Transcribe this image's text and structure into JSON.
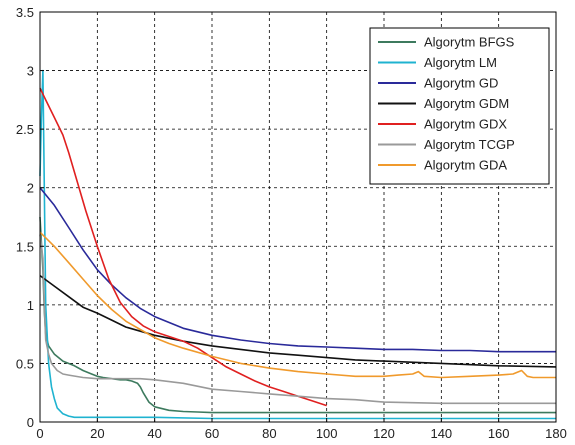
{
  "chart_data": {
    "type": "line",
    "title": "",
    "xlabel": "",
    "ylabel": "",
    "xlim": [
      0,
      180
    ],
    "ylim": [
      0,
      3.5
    ],
    "xticks": [
      "0",
      "20",
      "40",
      "60",
      "80",
      "100",
      "120",
      "140",
      "160",
      "180"
    ],
    "yticks": [
      "0",
      "0.5",
      "1",
      "1.5",
      "2",
      "2.5",
      "3",
      "3.5"
    ],
    "grid": true,
    "legend_position": "top-right",
    "series": [
      {
        "name": "Algorytm BFGS",
        "color": "#3d7a5e",
        "x": [
          0,
          1,
          1.5,
          2,
          3,
          5,
          8,
          12,
          15,
          18,
          20,
          22,
          25,
          28,
          30,
          32,
          34,
          35,
          36,
          38,
          40,
          45,
          50,
          55,
          60,
          80,
          100,
          120,
          140,
          160,
          180
        ],
        "y": [
          1.75,
          1.3,
          0.95,
          0.75,
          0.65,
          0.58,
          0.52,
          0.48,
          0.44,
          0.41,
          0.39,
          0.38,
          0.37,
          0.36,
          0.36,
          0.35,
          0.33,
          0.3,
          0.25,
          0.17,
          0.13,
          0.1,
          0.09,
          0.085,
          0.08,
          0.08,
          0.08,
          0.08,
          0.08,
          0.08,
          0.08
        ]
      },
      {
        "name": "Algorytm LM",
        "color": "#1fb3d0",
        "x": [
          0,
          0.5,
          1,
          1.5,
          2,
          3,
          4,
          5,
          6,
          8,
          10,
          12,
          15,
          20,
          40,
          60,
          80,
          100,
          120,
          140,
          160,
          180
        ],
        "y": [
          2.1,
          2.6,
          3.0,
          2.0,
          1.0,
          0.5,
          0.3,
          0.2,
          0.12,
          0.07,
          0.05,
          0.04,
          0.04,
          0.04,
          0.04,
          0.03,
          0.03,
          0.03,
          0.03,
          0.03,
          0.03,
          0.03
        ]
      },
      {
        "name": "Algorytm GD",
        "color": "#2a2a9a",
        "x": [
          0,
          5,
          10,
          15,
          20,
          25,
          30,
          35,
          40,
          50,
          60,
          70,
          80,
          90,
          100,
          110,
          120,
          130,
          140,
          150,
          160,
          170,
          180
        ],
        "y": [
          2.0,
          1.85,
          1.66,
          1.47,
          1.3,
          1.17,
          1.06,
          0.97,
          0.9,
          0.8,
          0.74,
          0.7,
          0.67,
          0.65,
          0.64,
          0.63,
          0.62,
          0.62,
          0.61,
          0.61,
          0.6,
          0.6,
          0.6
        ]
      },
      {
        "name": "Algorytm GDM",
        "color": "#111111",
        "x": [
          0,
          5,
          10,
          15,
          20,
          25,
          30,
          40,
          50,
          60,
          70,
          80,
          90,
          100,
          110,
          120,
          140,
          160,
          180
        ],
        "y": [
          1.25,
          1.16,
          1.07,
          0.98,
          0.93,
          0.87,
          0.81,
          0.74,
          0.69,
          0.65,
          0.62,
          0.59,
          0.57,
          0.55,
          0.53,
          0.52,
          0.5,
          0.48,
          0.47
        ]
      },
      {
        "name": "Algorytm GDX",
        "color": "#e02020",
        "x": [
          0,
          2,
          5,
          8,
          10,
          13,
          16,
          20,
          24,
          28,
          32,
          36,
          40,
          45,
          50,
          55,
          60,
          65,
          70,
          75,
          80,
          85,
          90,
          95,
          100
        ],
        "y": [
          2.85,
          2.75,
          2.6,
          2.45,
          2.3,
          2.05,
          1.8,
          1.5,
          1.22,
          1.02,
          0.9,
          0.82,
          0.77,
          0.73,
          0.69,
          0.63,
          0.55,
          0.47,
          0.41,
          0.35,
          0.3,
          0.26,
          0.22,
          0.18,
          0.14
        ]
      },
      {
        "name": "Algorytm TCGP",
        "color": "#9a9a9a",
        "x": [
          0,
          1,
          1.5,
          2,
          3,
          4,
          6,
          8,
          10,
          15,
          20,
          25,
          30,
          35,
          40,
          50,
          60,
          70,
          80,
          90,
          100,
          110,
          120,
          140,
          160,
          180
        ],
        "y": [
          1.6,
          1.4,
          1.0,
          0.7,
          0.58,
          0.5,
          0.44,
          0.41,
          0.4,
          0.38,
          0.37,
          0.37,
          0.37,
          0.37,
          0.36,
          0.33,
          0.28,
          0.26,
          0.24,
          0.22,
          0.2,
          0.19,
          0.17,
          0.16,
          0.16,
          0.16
        ]
      },
      {
        "name": "Algorytm GDA",
        "color": "#f09a2c",
        "x": [
          0,
          5,
          10,
          15,
          20,
          25,
          30,
          35,
          40,
          45,
          50,
          60,
          70,
          80,
          90,
          100,
          110,
          120,
          125,
          130,
          132,
          134,
          140,
          150,
          160,
          165,
          168,
          170,
          172,
          175,
          180
        ],
        "y": [
          1.62,
          1.5,
          1.36,
          1.22,
          1.08,
          0.96,
          0.86,
          0.79,
          0.72,
          0.67,
          0.63,
          0.56,
          0.5,
          0.46,
          0.43,
          0.41,
          0.39,
          0.39,
          0.4,
          0.41,
          0.43,
          0.39,
          0.38,
          0.39,
          0.4,
          0.41,
          0.44,
          0.39,
          0.38,
          0.38,
          0.38
        ]
      }
    ]
  }
}
